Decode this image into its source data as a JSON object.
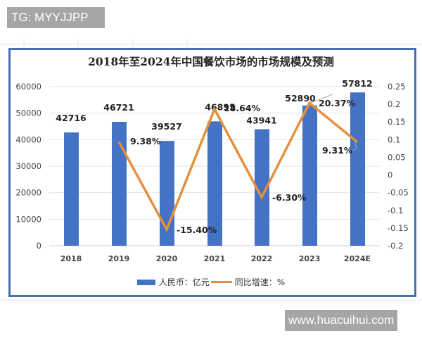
{
  "watermark_top": "TG: MYYJJPP",
  "watermark_bottom": "www.huacuihui.com",
  "chart_data": {
    "type": "bar+line",
    "title": "2018年至2024年中国餐饮市场的市场规模及预测",
    "categories": [
      "2018",
      "2019",
      "2020",
      "2021",
      "2022",
      "2023",
      "2024E"
    ],
    "series": [
      {
        "name": "人民币：亿元",
        "type": "bar",
        "axis": "left",
        "color": "#4472c4",
        "values": [
          42716,
          46721,
          39527,
          46895,
          43941,
          52890,
          57812
        ]
      },
      {
        "name": "同比增速：%",
        "type": "line",
        "axis": "right",
        "color": "#e3913f",
        "values": [
          null,
          0.0938,
          -0.154,
          0.1864,
          -0.063,
          0.2037,
          0.0931
        ],
        "labels": [
          null,
          "9.38%",
          "-15.40%",
          "18.64%",
          "-6.30%",
          "20.37%",
          "9.31%"
        ]
      }
    ],
    "left_axis": {
      "ticks": [
        "60000",
        "50000",
        "40000",
        "30000",
        "20000",
        "10000",
        "0"
      ],
      "range": [
        0,
        60000
      ]
    },
    "right_axis": {
      "ticks": [
        "0.25",
        "0.2",
        "0.15",
        "0.1",
        "0.05",
        "0",
        "-0.05",
        "-0.1",
        "-0.15",
        "-0.2"
      ],
      "range": [
        -0.2,
        0.25
      ]
    },
    "grid": true,
    "legend_position": "bottom"
  },
  "legend": {
    "bar_label": "人民币：亿元",
    "line_label": "同比增速：%"
  }
}
